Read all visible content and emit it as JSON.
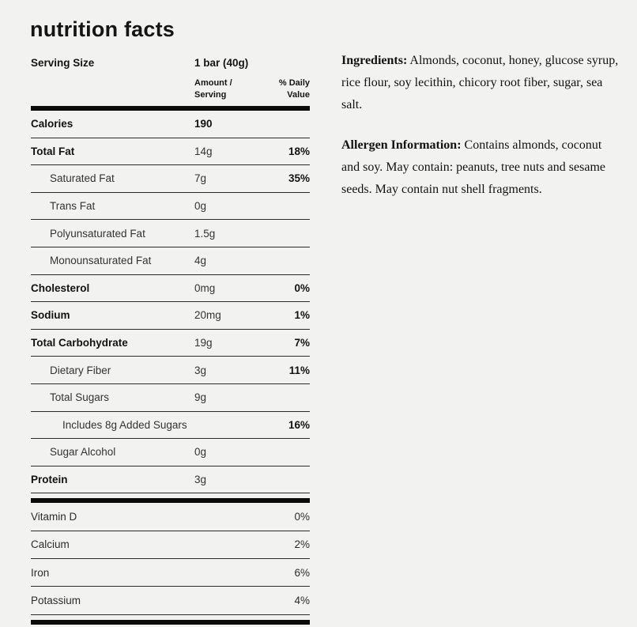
{
  "title": "nutrition facts",
  "colors": {
    "background": "#f2f2f0",
    "text": "#1f1f1f",
    "rule": "#2a2a2a",
    "thick_bar": "#0b0b0b"
  },
  "nutrition": {
    "serving": {
      "label": "Serving Size",
      "value": "1 bar (40g)"
    },
    "column_headers": {
      "amount": "Amount /\nServing",
      "daily": "% Daily\nValue"
    },
    "rows": [
      {
        "label": "Calories",
        "amount": "190",
        "dv": ""
      },
      {
        "label": "Total Fat",
        "amount": "14g",
        "dv": "18%"
      },
      {
        "label": "Saturated Fat",
        "amount": "7g",
        "dv": "35%"
      },
      {
        "label": "Trans Fat",
        "amount": "0g",
        "dv": ""
      },
      {
        "label": "Polyunsaturated Fat",
        "amount": "1.5g",
        "dv": ""
      },
      {
        "label": "Monounsaturated Fat",
        "amount": "4g",
        "dv": ""
      },
      {
        "label": "Cholesterol",
        "amount": "0mg",
        "dv": "0%"
      },
      {
        "label": "Sodium",
        "amount": "20mg",
        "dv": "1%"
      },
      {
        "label": "Total Carbohydrate",
        "amount": "19g",
        "dv": "7%"
      },
      {
        "label": "Dietary Fiber",
        "amount": "3g",
        "dv": "11%"
      },
      {
        "label": "Total Sugars",
        "amount": "9g",
        "dv": ""
      },
      {
        "label": "Includes 8g Added Sugars",
        "amount": "",
        "dv": "16%"
      },
      {
        "label": "Sugar Alcohol",
        "amount": "0g",
        "dv": ""
      },
      {
        "label": "Protein",
        "amount": "3g",
        "dv": ""
      }
    ],
    "micronutrients": [
      {
        "label": "Vitamin D",
        "dv": "0%"
      },
      {
        "label": "Calcium",
        "dv": "2%"
      },
      {
        "label": "Iron",
        "dv": "6%"
      },
      {
        "label": "Potassium",
        "dv": "4%"
      }
    ]
  },
  "ingredients": {
    "label": "Ingredients:",
    "text": " Almonds, coconut, honey, glucose syrup, rice flour, soy lecithin, chicory root fiber, sugar, sea salt."
  },
  "allergen": {
    "label": "Allergen Information:",
    "text": " Contains almonds, coconut and soy. May contain: peanuts, tree nuts and sesame seeds. May contain nut shell fragments."
  }
}
